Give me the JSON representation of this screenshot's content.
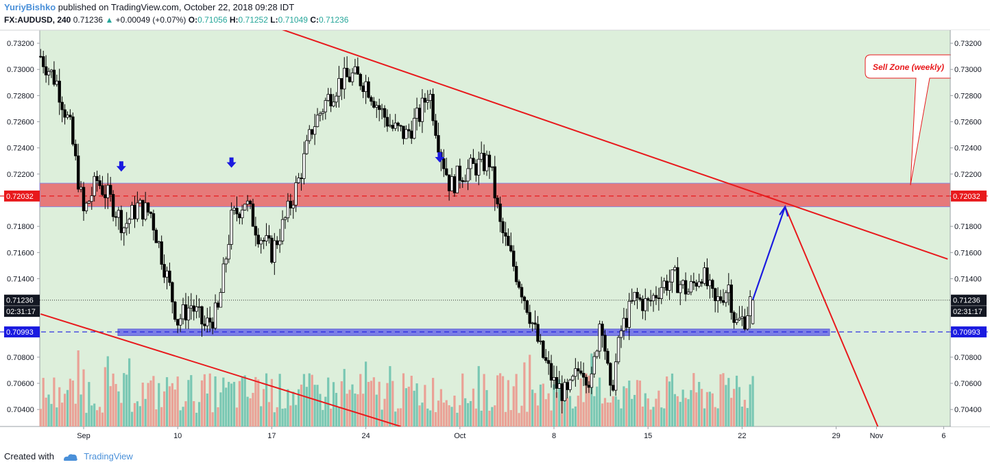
{
  "header": {
    "author": "YuriyBishko",
    "published": "published on TradingView.com, October 22, 2018 09:28 IDT",
    "symbol": "FX:AUDUSD, 240",
    "last": "0.71236",
    "change": "+0.00049 (+0.07%)",
    "o_label": "O:",
    "o": "0.71056",
    "h_label": "H:",
    "h": "0.71252",
    "l_label": "L:",
    "l": "0.71049",
    "c_label": "C:",
    "c": "0.71236"
  },
  "footer": {
    "created": "Created with",
    "brand": "TradingView"
  },
  "colors": {
    "background": "#ddefdb",
    "trendline": "#e8191c",
    "resistance_zone": "#e67a7a",
    "support_zone": "#6a6ae8",
    "projection": "#1a1ae0",
    "vol_up": "#79c7b3",
    "vol_down": "#eaa196"
  },
  "chart_data": {
    "type": "candlestick",
    "ylim": [
      0.7027,
      0.733
    ],
    "y_ticks": [
      "0.73200",
      "0.73000",
      "0.72800",
      "0.72600",
      "0.72400",
      "0.72200",
      "0.71800",
      "0.71600",
      "0.71400",
      "0.70800",
      "0.70600",
      "0.70400"
    ],
    "x_ticks": [
      {
        "label": "Sep",
        "t": 0
      },
      {
        "label": "10",
        "t": 7
      },
      {
        "label": "17",
        "t": 14
      },
      {
        "label": "24",
        "t": 21
      },
      {
        "label": "Oct",
        "t": 28
      },
      {
        "label": "8",
        "t": 35
      },
      {
        "label": "15",
        "t": 42
      },
      {
        "label": "22",
        "t": 49
      },
      {
        "label": "29",
        "t": 56
      },
      {
        "label": "Nov",
        "t": 59
      },
      {
        "label": "6",
        "t": 64
      }
    ],
    "price_labels": [
      {
        "text": "0.72032",
        "value": 0.72032,
        "color": "#e8191c"
      },
      {
        "text": "0.71236",
        "value": 0.71236,
        "color": "#131722"
      },
      {
        "text": "02:31:17",
        "value": 0.7115,
        "color": "#131722"
      },
      {
        "text": "0.70993",
        "value": 0.70993,
        "color": "#1a1ae0"
      }
    ],
    "resistance_zone": {
      "from": 0.7195,
      "to": 0.7213,
      "level": 0.72032
    },
    "support_zone": {
      "from": 0.70965,
      "to": 0.71015,
      "level": 0.70993
    },
    "current_price": 0.71236,
    "annotation": "Sell Zone (weekly)",
    "arrows_down_at": [
      {
        "t": 2.8,
        "price": 0.7225
      },
      {
        "t": 11.0,
        "price": 0.7228
      },
      {
        "t": 26.5,
        "price": 0.7232
      }
    ],
    "path": [
      [
        -3.2,
        0.731
      ],
      [
        -2.0,
        0.729
      ],
      [
        -1,
        0.7255
      ],
      [
        0,
        0.719
      ],
      [
        1,
        0.7215
      ],
      [
        2,
        0.72
      ],
      [
        3,
        0.718
      ],
      [
        4,
        0.7195
      ],
      [
        5,
        0.719
      ],
      [
        6,
        0.715
      ],
      [
        7,
        0.7108
      ],
      [
        8,
        0.712
      ],
      [
        9,
        0.7103
      ],
      [
        10,
        0.7115
      ],
      [
        11,
        0.7185
      ],
      [
        12,
        0.72
      ],
      [
        13,
        0.7175
      ],
      [
        14,
        0.716
      ],
      [
        15,
        0.7185
      ],
      [
        16,
        0.7215
      ],
      [
        17,
        0.7255
      ],
      [
        18,
        0.7275
      ],
      [
        19,
        0.729
      ],
      [
        20,
        0.7295
      ],
      [
        21,
        0.729
      ],
      [
        22,
        0.727
      ],
      [
        23,
        0.7255
      ],
      [
        24,
        0.725
      ],
      [
        25,
        0.7265
      ],
      [
        25.7,
        0.7285
      ],
      [
        26.5,
        0.724
      ],
      [
        27.3,
        0.721
      ],
      [
        28,
        0.722
      ],
      [
        29,
        0.7225
      ],
      [
        30.2,
        0.723
      ],
      [
        31,
        0.718
      ],
      [
        32,
        0.715
      ],
      [
        33,
        0.712
      ],
      [
        34,
        0.7085
      ],
      [
        35,
        0.706
      ],
      [
        36,
        0.705
      ],
      [
        37,
        0.7075
      ],
      [
        37.8,
        0.706
      ],
      [
        38.5,
        0.7115
      ],
      [
        39.2,
        0.705
      ],
      [
        40,
        0.71
      ],
      [
        41,
        0.7125
      ],
      [
        42,
        0.712
      ],
      [
        43,
        0.7135
      ],
      [
        44,
        0.714
      ],
      [
        45,
        0.713
      ],
      [
        46,
        0.7145
      ],
      [
        47,
        0.712
      ],
      [
        48,
        0.7135
      ],
      [
        48.5,
        0.7105
      ],
      [
        49.2,
        0.711
      ],
      [
        49.8,
        0.7128
      ]
    ],
    "projection": [
      [
        49.8,
        0.7124
      ],
      [
        52.2,
        0.7195
      ]
    ]
  }
}
